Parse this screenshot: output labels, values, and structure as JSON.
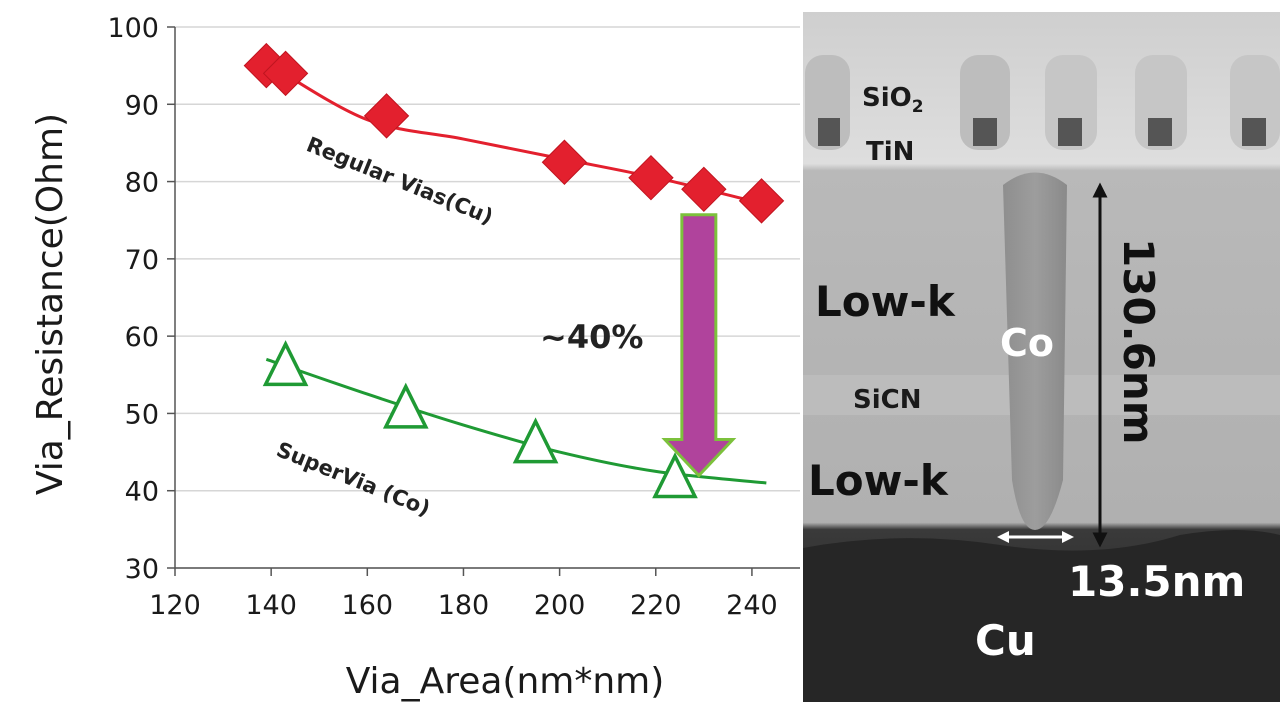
{
  "chart_data": {
    "type": "scatter",
    "xlabel": "Via_Area(nm*nm)",
    "ylabel": "Via_Resistance(Ohm)",
    "xlim": [
      120,
      250
    ],
    "ylim": [
      30,
      100
    ],
    "x_ticks": [
      120,
      140,
      160,
      180,
      200,
      220,
      240
    ],
    "y_ticks": [
      30,
      40,
      50,
      60,
      70,
      80,
      90,
      100
    ],
    "grid": "horizontal",
    "series": [
      {
        "name": "Regular Vias(Cu)",
        "marker": "diamond",
        "color": "#e3202e",
        "x": [
          139,
          143,
          164,
          201,
          219,
          230,
          242
        ],
        "y": [
          95,
          94,
          88.5,
          82.5,
          80.5,
          79,
          77.5
        ],
        "trend": {
          "x": [
            140,
            160,
            180,
            200,
            220,
            240
          ],
          "y": [
            95,
            88,
            85.5,
            83,
            80.5,
            77.5
          ]
        }
      },
      {
        "name": "SuperVia (Co)",
        "marker": "triangle-open",
        "color": "#1f9a34",
        "x": [
          143,
          168,
          195,
          224
        ],
        "y": [
          56,
          50.5,
          46,
          41.5
        ],
        "trend": {
          "x": [
            139,
            160,
            180,
            200,
            220,
            243
          ],
          "y": [
            57,
            52.5,
            48.5,
            45,
            42.5,
            41
          ]
        }
      }
    ],
    "annotation": {
      "text": "~40%",
      "arrow_color": "#b0439c",
      "arrow_outline": "#7cc13c",
      "x": 230,
      "from_y": 77,
      "to_y": 43
    }
  },
  "tem_image": {
    "labels": {
      "sio2": "SiO",
      "sio2_sub": "2",
      "tin": "TiN",
      "lowk_top": "Low-k",
      "co": "Co",
      "sicn": "SiCN",
      "lowk_bottom": "Low-k",
      "cu": "Cu",
      "height": "130.6nm",
      "width": "13.5nm"
    }
  }
}
